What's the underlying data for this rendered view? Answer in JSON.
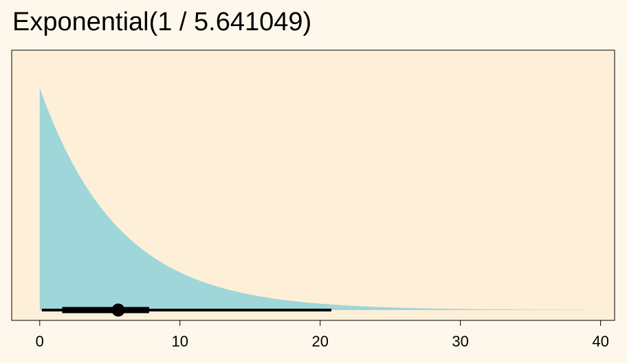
{
  "chart_data": {
    "type": "area",
    "title": "Exponential(1 / 5.641049)",
    "distribution": "exponential",
    "rate": 0.17727,
    "mean": 5.641049,
    "xlim": [
      -2,
      41
    ],
    "x_domain": [
      0,
      39
    ],
    "xticks": [
      0,
      10,
      20,
      30,
      40
    ],
    "x_tick_labels": [
      "0",
      "10",
      "20",
      "30",
      "40"
    ],
    "xlabel": "",
    "ylabel": "",
    "y_axis_shown": false,
    "grid": false,
    "interval": {
      "point": 5.6,
      "inner": [
        1.6,
        7.8
      ],
      "outer": [
        0.15,
        20.8
      ]
    },
    "colors": {
      "page_bg": "#fef8ec",
      "panel_bg": "#feefd9",
      "density_fill": "#9fd6d9",
      "interval": "#000000"
    }
  }
}
